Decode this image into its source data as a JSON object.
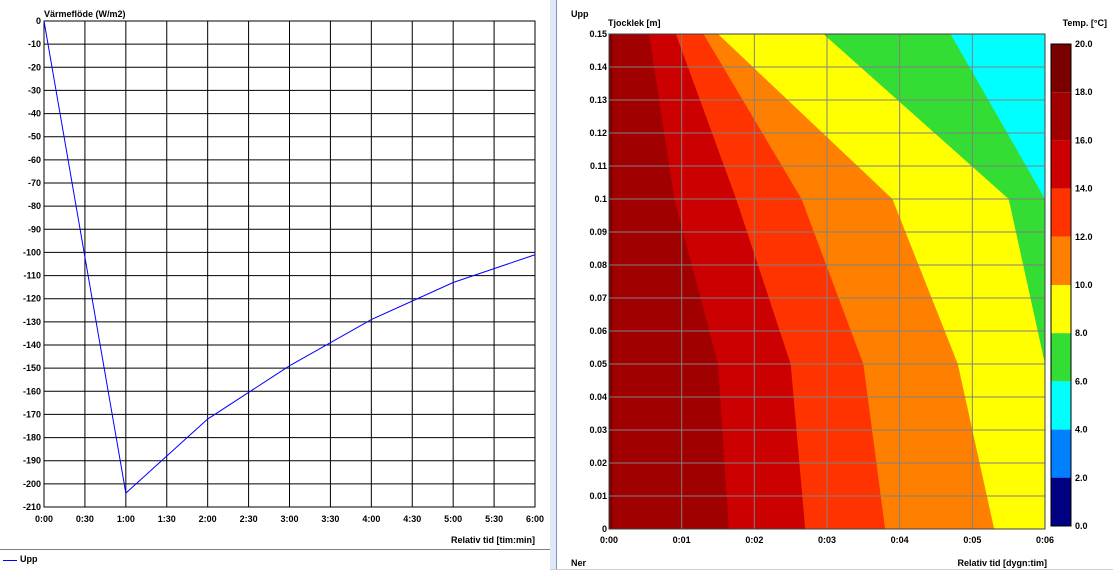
{
  "left_chart": {
    "ylabel": "Värmeflöde (W/m2)",
    "xlabel": "Relativ tid [tim:min]",
    "legend_entries": [
      "Upp"
    ]
  },
  "right_chart": {
    "top_label": "Upp",
    "bottom_label": "Ner",
    "ylabel": "Tjocklek [m]",
    "xlabel": "Relativ tid [dygn:tim]",
    "colorbar_label": "Temp. [°C]"
  },
  "chart_data": [
    {
      "type": "line",
      "ylabel": "Värmeflöde (W/m2)",
      "xlabel": "Relativ tid [tim:min]",
      "x_ticks": [
        "0:00",
        "0:30",
        "1:00",
        "1:30",
        "2:00",
        "2:30",
        "3:00",
        "3:30",
        "4:00",
        "4:30",
        "5:00",
        "5:30",
        "6:00"
      ],
      "y_ticks": [
        "0",
        "-10",
        "-20",
        "-30",
        "-40",
        "-50",
        "-60",
        "-70",
        "-80",
        "-90",
        "-100",
        "-110",
        "-120",
        "-130",
        "-140",
        "-150",
        "-160",
        "-170",
        "-180",
        "-190",
        "-200",
        "-210"
      ],
      "xlim": [
        0,
        6
      ],
      "ylim": [
        -210,
        0
      ],
      "grid": true,
      "legend": "bottom",
      "series": [
        {
          "name": "Upp",
          "color": "#0000ff",
          "x": [
            0,
            1,
            2,
            3,
            4,
            5,
            6
          ],
          "y": [
            0,
            -204,
            -172,
            -149,
            -129,
            -113,
            -101
          ]
        }
      ]
    },
    {
      "type": "heatmap",
      "ylabel": "Tjocklek [m]",
      "xlabel": "Relativ tid [dygn:tim]",
      "x_ticks": [
        "0:00",
        "0:01",
        "0:02",
        "0:03",
        "0:04",
        "0:05",
        "0:06"
      ],
      "y_ticks": [
        "0",
        "0.01",
        "0.02",
        "0.03",
        "0.04",
        "0.05",
        "0.06",
        "0.07",
        "0.08",
        "0.09",
        "0.1",
        "0.11",
        "0.12",
        "0.13",
        "0.14",
        "0.15"
      ],
      "xlim": [
        0,
        6
      ],
      "ylim": [
        0,
        0.15
      ],
      "grid": true,
      "colorbar": {
        "label": "Temp. [°C]",
        "ticks": [
          "20.0",
          "18.0",
          "16.0",
          "14.0",
          "12.0",
          "10.0",
          "8.0",
          "6.0",
          "4.0",
          "2.0",
          "0.0"
        ],
        "colors": [
          "#7a0000",
          "#a00000",
          "#cc0000",
          "#ff3300",
          "#ff8000",
          "#ffff00",
          "#33dd33",
          "#00ffff",
          "#0080ff",
          "#0000ff",
          "#000080"
        ]
      },
      "isotherms_hours_at_depth": {
        "depth": [
          0,
          0.05,
          0.1,
          0.15
        ],
        "18": [
          1.65,
          1.5,
          0.9,
          0.55
        ],
        "16": [
          2.7,
          2.5,
          1.75,
          0.92
        ],
        "14": [
          3.8,
          3.5,
          2.65,
          1.3
        ],
        "12": [
          5.3,
          4.8,
          3.9,
          1.5
        ],
        "10": [
          6.0,
          6.0,
          5.5,
          2.95
        ],
        "8": [
          6.0,
          6.0,
          6.0,
          4.7
        ]
      }
    }
  ]
}
